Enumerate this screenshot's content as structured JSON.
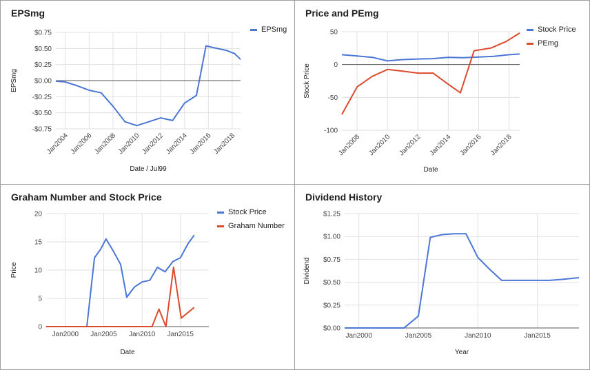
{
  "chart_data": [
    {
      "id": "eps",
      "type": "line",
      "title": "EPSmg",
      "xlabel": "Date / Jul99",
      "ylabel": "EPSmg",
      "x_tick_labels": [
        "Jan2004",
        "Jan2006",
        "Jan2008",
        "Jan2010",
        "Jan2012",
        "Jan2014",
        "Jan2016",
        "Jan2018"
      ],
      "x_tick_years": [
        2004,
        2006,
        2008,
        2010,
        2012,
        2014,
        2016,
        2018
      ],
      "x_range": [
        2003.2,
        2018.7
      ],
      "y_tick_labels": [
        "$0.75",
        "$0.50",
        "$0.25",
        "$0.00",
        "-$0.25",
        "-$0.50",
        "-$0.75"
      ],
      "y_tick_values": [
        0.75,
        0.5,
        0.25,
        0.0,
        -0.25,
        -0.5,
        -0.75
      ],
      "ylim": [
        -0.75,
        0.75
      ],
      "grid": true,
      "legend_position": "top-right",
      "series": [
        {
          "name": "EPSmg",
          "color": "#4a76d6",
          "points": [
            [
              2003.2,
              -0.01
            ],
            [
              2004,
              -0.02
            ],
            [
              2005,
              -0.08
            ],
            [
              2006,
              -0.15
            ],
            [
              2007,
              -0.19
            ],
            [
              2008,
              -0.4
            ],
            [
              2009,
              -0.64
            ],
            [
              2010,
              -0.7
            ],
            [
              2011,
              -0.64
            ],
            [
              2012,
              -0.58
            ],
            [
              2013,
              -0.62
            ],
            [
              2014,
              -0.35
            ],
            [
              2015,
              -0.23
            ],
            [
              2015.8,
              0.54
            ],
            [
              2016.5,
              0.51
            ],
            [
              2017.5,
              0.47
            ],
            [
              2018.2,
              0.42
            ],
            [
              2018.7,
              0.33
            ]
          ]
        }
      ],
      "reference_line_y": 0
    },
    {
      "id": "price-pe",
      "type": "line",
      "title": "Price and PEmg",
      "xlabel": "Date",
      "ylabel": "Stock Price",
      "x_tick_labels": [
        "Jan2008",
        "Jan2010",
        "Jan2012",
        "Jan2014",
        "Jan2016",
        "Jan2018"
      ],
      "x_tick_years": [
        2008,
        2010,
        2012,
        2014,
        2016,
        2018
      ],
      "x_range": [
        2007.0,
        2018.7
      ],
      "y_tick_labels": [
        "50",
        "0",
        "-50",
        "-100"
      ],
      "y_tick_values": [
        50,
        0,
        -50,
        -100
      ],
      "ylim": [
        -100,
        50
      ],
      "grid": true,
      "legend_position": "top-right",
      "series": [
        {
          "name": "Stock Price",
          "color": "#4a76d6",
          "points": [
            [
              2007,
              15
            ],
            [
              2008,
              13
            ],
            [
              2009,
              11
            ],
            [
              2010,
              5.5
            ],
            [
              2011,
              7.5
            ],
            [
              2012,
              8.5
            ],
            [
              2013,
              9
            ],
            [
              2014,
              11
            ],
            [
              2015,
              10.5
            ],
            [
              2016,
              11.5
            ],
            [
              2017,
              12.5
            ],
            [
              2018,
              15
            ],
            [
              2018.7,
              16
            ]
          ]
        },
        {
          "name": "PEmg",
          "color": "#dc4a2d",
          "points": [
            [
              2007,
              -76
            ],
            [
              2008,
              -34
            ],
            [
              2009,
              -18
            ],
            [
              2010,
              -7.5
            ],
            [
              2011,
              -10
            ],
            [
              2012,
              -13
            ],
            [
              2013,
              -13
            ],
            [
              2014,
              -30
            ],
            [
              2014.8,
              -43
            ],
            [
              2015.7,
              21
            ],
            [
              2016.8,
              25
            ],
            [
              2017.8,
              35
            ],
            [
              2018.7,
              48
            ]
          ]
        }
      ],
      "reference_line_y": 0
    },
    {
      "id": "graham",
      "type": "line",
      "title": "Graham Number and Stock Price",
      "xlabel": "Date",
      "ylabel": "Price",
      "x_tick_labels": [
        "Jan2000",
        "Jan2005",
        "Jan2010",
        "Jan2015"
      ],
      "x_tick_years": [
        2000,
        2005,
        2010,
        2015
      ],
      "x_range": [
        1997.5,
        2018.7
      ],
      "y_tick_labels": [
        "20",
        "15",
        "10",
        "5",
        "0"
      ],
      "y_tick_values": [
        20,
        15,
        10,
        5,
        0
      ],
      "ylim": [
        0,
        20
      ],
      "grid": true,
      "legend_position": "top-right",
      "series": [
        {
          "name": "Stock Price",
          "color": "#4a76d6",
          "points": [
            [
              1997.5,
              0
            ],
            [
              2002.8,
              0
            ],
            [
              2003.8,
              12.2
            ],
            [
              2004.6,
              13.7
            ],
            [
              2005.3,
              15.5
            ],
            [
              2006.2,
              13.5
            ],
            [
              2007.2,
              11.0
            ],
            [
              2008,
              5.2
            ],
            [
              2009,
              7.0
            ],
            [
              2010,
              7.9
            ],
            [
              2011,
              8.2
            ],
            [
              2012,
              10.5
            ],
            [
              2013,
              9.7
            ],
            [
              2014,
              11.5
            ],
            [
              2015,
              12.2
            ],
            [
              2016,
              14.7
            ],
            [
              2016.8,
              16.2
            ]
          ]
        },
        {
          "name": "Graham Number",
          "color": "#dc4a2d",
          "points": [
            [
              1997.5,
              0
            ],
            [
              2011.3,
              0
            ],
            [
              2012.2,
              3.1
            ],
            [
              2013.1,
              0
            ],
            [
              2014.1,
              10.5
            ],
            [
              2015.1,
              1.5
            ],
            [
              2016.8,
              3.4
            ]
          ]
        }
      ]
    },
    {
      "id": "dividend",
      "type": "line",
      "title": "Dividend History",
      "xlabel": "Year",
      "ylabel": "Dividend",
      "x_tick_labels": [
        "Jan2000",
        "Jan2005",
        "Jan2010",
        "Jan2015"
      ],
      "x_tick_years": [
        2000,
        2005,
        2010,
        2015
      ],
      "x_range": [
        1998.8,
        2018.5
      ],
      "y_tick_labels": [
        "$1.25",
        "$1.00",
        "$0.75",
        "$0.50",
        "$0.25",
        "$0.00"
      ],
      "y_tick_values": [
        1.25,
        1.0,
        0.75,
        0.5,
        0.25,
        0.0
      ],
      "ylim": [
        0,
        1.25
      ],
      "grid": true,
      "series": [
        {
          "name": "Dividend",
          "color": "#4a76d6",
          "points": [
            [
              1998.8,
              0
            ],
            [
              2003.8,
              0
            ],
            [
              2005,
              0.13
            ],
            [
              2006,
              0.99
            ],
            [
              2007,
              1.02
            ],
            [
              2008,
              1.03
            ],
            [
              2009,
              1.03
            ],
            [
              2010,
              0.77
            ],
            [
              2011,
              0.64
            ],
            [
              2012,
              0.52
            ],
            [
              2013,
              0.52
            ],
            [
              2014,
              0.52
            ],
            [
              2015,
              0.52
            ],
            [
              2016,
              0.52
            ],
            [
              2017,
              0.53
            ],
            [
              2018.5,
              0.55
            ]
          ]
        }
      ]
    }
  ]
}
